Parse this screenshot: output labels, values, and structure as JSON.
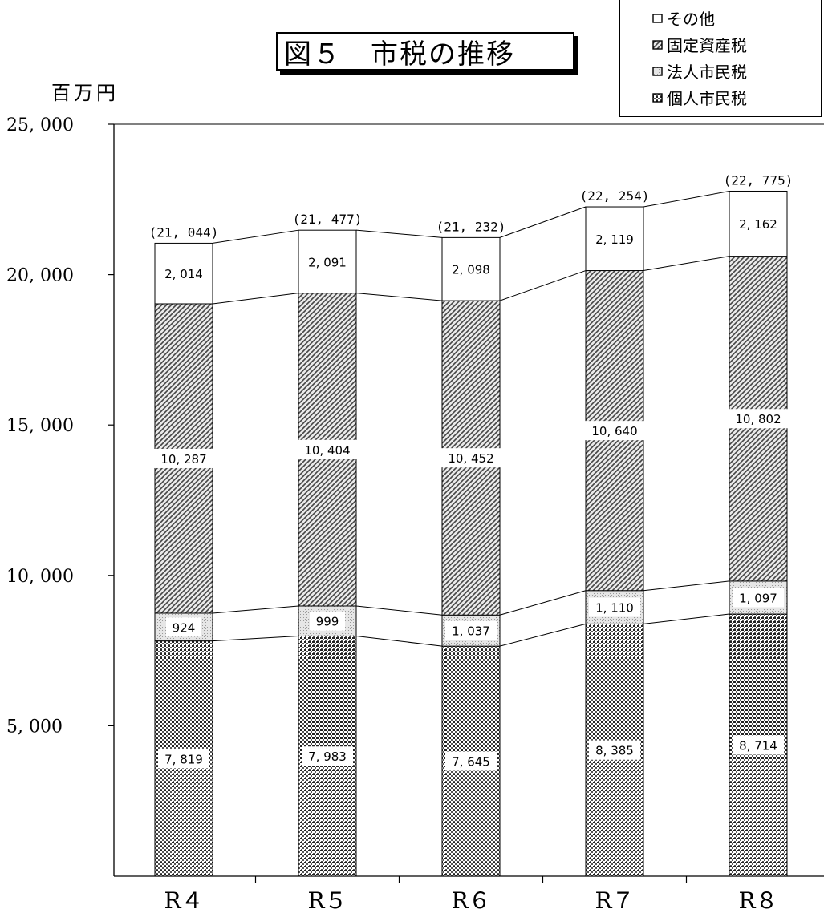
{
  "chart_data": {
    "type": "bar",
    "stacked": true,
    "title": "図５　市税の推移",
    "ylabel": "百万円",
    "ylim": [
      0,
      25000
    ],
    "yticks": [
      5000,
      10000,
      15000,
      20000,
      25000
    ],
    "ytick_labels": [
      "5, 000",
      "10, 000",
      "15, 000",
      "20, 000",
      "25, 000"
    ],
    "categories": [
      "R４",
      "R５",
      "R６",
      "R７",
      "R８"
    ],
    "series": [
      {
        "name": "個人市民税",
        "values": [
          7819,
          7983,
          7645,
          8385,
          8714
        ],
        "labels": [
          "7, 819",
          "7, 983",
          "7, 645",
          "8, 385",
          "8, 714"
        ]
      },
      {
        "name": "法人市民税",
        "values": [
          924,
          999,
          1037,
          1110,
          1097
        ],
        "labels": [
          "924",
          "999",
          "1, 037",
          "1, 110",
          "1, 097"
        ]
      },
      {
        "name": "固定資産税",
        "values": [
          10287,
          10404,
          10452,
          10640,
          10802
        ],
        "labels": [
          "10, 287",
          "10, 404",
          "10, 452",
          "10, 640",
          "10, 802"
        ]
      },
      {
        "name": "その他",
        "values": [
          2014,
          2091,
          2098,
          2119,
          2162
        ],
        "labels": [
          "2, 014",
          "2, 091",
          "2, 098",
          "2, 119",
          "2, 162"
        ]
      }
    ],
    "totals": [
      21044,
      21477,
      21232,
      22254,
      22775
    ],
    "total_labels": [
      "(21, 044)",
      "(21, 477)",
      "(21, 232)",
      "(22, 254)",
      "(22, 775)"
    ],
    "legend": {
      "placement": "top-right",
      "entries": [
        "その他",
        "固定資産税",
        "法人市民税",
        "個人市民税"
      ]
    },
    "grid": false,
    "series_lines": true
  }
}
